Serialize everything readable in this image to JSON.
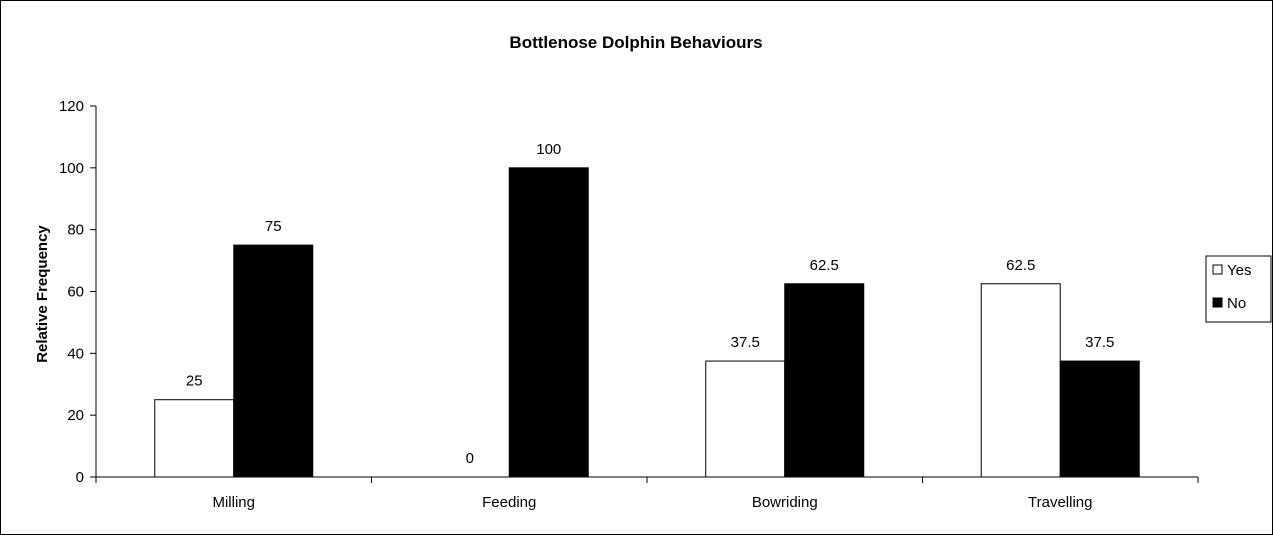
{
  "chart_data": {
    "type": "bar",
    "title": "Bottlenose Dolphin Behaviours",
    "xlabel": "",
    "ylabel": "Relative Frequency",
    "categories": [
      "Milling",
      "Feeding",
      "Bowriding",
      "Travelling"
    ],
    "series": [
      {
        "name": "Yes",
        "values": [
          25,
          0,
          37.5,
          62.5
        ],
        "color": "#ffffff"
      },
      {
        "name": "No",
        "values": [
          75,
          100,
          62.5,
          37.5
        ],
        "color": "#000000"
      }
    ],
    "ylim": [
      0,
      120
    ],
    "yticks": [
      0,
      20,
      40,
      60,
      80,
      100,
      120
    ],
    "grid": false,
    "legend_position": "right"
  }
}
